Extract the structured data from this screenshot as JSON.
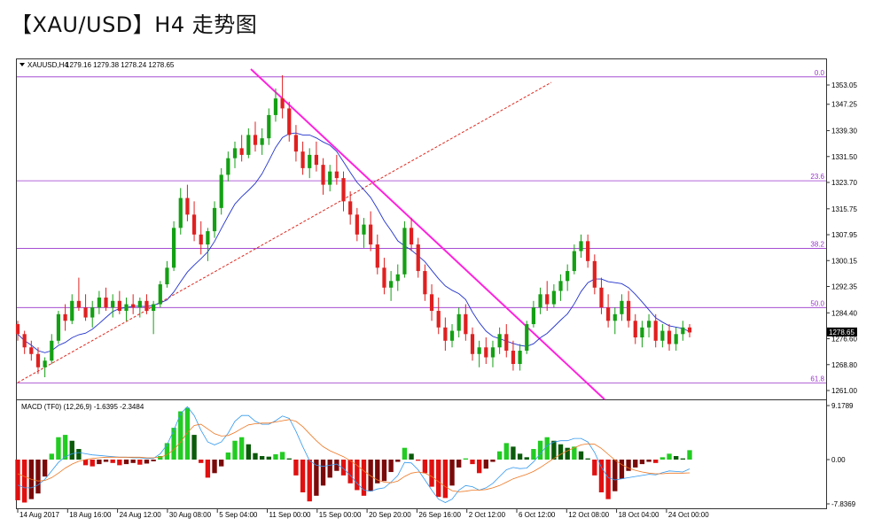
{
  "page": {
    "title": "【XAU/USD】H4 走势图"
  },
  "chart_data": {
    "type": "candlestick",
    "header": {
      "symbol": "XAUUSD,H4",
      "ohlc": "1279.16 1279.38 1278.24 1278.65",
      "current_price": "1278.65"
    },
    "price_axis": {
      "ticks": [
        1353.05,
        1347.25,
        1339.3,
        1331.5,
        1323.7,
        1315.75,
        1307.95,
        1300.15,
        1292.35,
        1284.4,
        1276.6,
        1268.8,
        1261.0
      ],
      "tick_labels": [
        "1353.05",
        "1347.25",
        "1339.30",
        "1331.50",
        "1323.70",
        "1315.75",
        "1307.95",
        "1300.15",
        "1292.35",
        "1284.40",
        "1276.60",
        "1268.80",
        "1261.00"
      ]
    },
    "x_axis": {
      "labels": [
        "14 Aug 2017",
        "18 Aug 16:00",
        "24 Aug 12:00",
        "30 Aug 08:00",
        "5 Sep 04:00",
        "11 Sep 00:00",
        "15 Sep 00:00",
        "20 Sep 20:00",
        "26 Sep 16:00",
        "2 Oct 12:00",
        "6 Oct 12:00",
        "12 Oct 08:00",
        "18 Oct 04:00",
        "24 Oct 00:00"
      ]
    },
    "fibonacci": [
      {
        "level": "0.0",
        "price": 1355.5
      },
      {
        "level": "23.6",
        "price": 1324.2
      },
      {
        "level": "38.2",
        "price": 1303.8
      },
      {
        "level": "50.0",
        "price": 1286.0
      },
      {
        "level": "61.8",
        "price": 1263.3
      }
    ],
    "candles": [
      [
        1281.0,
        1282.0,
        1276.0,
        1278.0
      ],
      [
        1278.0,
        1279.0,
        1272.0,
        1274.0
      ],
      [
        1274.0,
        1276.0,
        1270.0,
        1272.0
      ],
      [
        1272.0,
        1274.0,
        1266.0,
        1268.0
      ],
      [
        1268.0,
        1271.0,
        1265.0,
        1270.0
      ],
      [
        1270.0,
        1278.0,
        1269.0,
        1276.0
      ],
      [
        1276.0,
        1285.0,
        1275.0,
        1284.0
      ],
      [
        1284.0,
        1287.0,
        1279.0,
        1282.0
      ],
      [
        1282.0,
        1290.0,
        1281.0,
        1288.0
      ],
      [
        1288.0,
        1295.0,
        1285.0,
        1286.0
      ],
      [
        1286.0,
        1290.0,
        1282.0,
        1283.0
      ],
      [
        1283.0,
        1288.0,
        1280.0,
        1286.0
      ],
      [
        1286.0,
        1291.0,
        1284.0,
        1289.0
      ],
      [
        1289.0,
        1292.0,
        1285.0,
        1286.0
      ],
      [
        1286.0,
        1290.0,
        1283.0,
        1288.0
      ],
      [
        1288.0,
        1291.0,
        1284.0,
        1285.0
      ],
      [
        1285.0,
        1289.0,
        1282.0,
        1287.0
      ],
      [
        1287.0,
        1290.0,
        1284.0,
        1286.0
      ],
      [
        1286.0,
        1289.0,
        1283.0,
        1288.0
      ],
      [
        1288.0,
        1290.0,
        1284.0,
        1285.0
      ],
      [
        1285.0,
        1288.0,
        1278.0,
        1287.0
      ],
      [
        1287.0,
        1294.0,
        1286.0,
        1293.0
      ],
      [
        1293.0,
        1300.0,
        1292.0,
        1298.0
      ],
      [
        1298.0,
        1312.0,
        1297.0,
        1310.0
      ],
      [
        1310.0,
        1322.0,
        1308.0,
        1319.0
      ],
      [
        1319.0,
        1323.0,
        1312.0,
        1314.0
      ],
      [
        1314.0,
        1318.0,
        1306.0,
        1308.0
      ],
      [
        1308.0,
        1312.0,
        1302.0,
        1305.0
      ],
      [
        1305.0,
        1310.0,
        1300.0,
        1309.0
      ],
      [
        1309.0,
        1318.0,
        1307.0,
        1316.0
      ],
      [
        1316.0,
        1328.0,
        1314.0,
        1326.0
      ],
      [
        1326.0,
        1333.0,
        1324.0,
        1331.0
      ],
      [
        1331.0,
        1336.0,
        1328.0,
        1334.0
      ],
      [
        1334.0,
        1338.0,
        1330.0,
        1332.0
      ],
      [
        1332.0,
        1340.0,
        1331.0,
        1338.0
      ],
      [
        1338.0,
        1342.0,
        1333.0,
        1335.0
      ],
      [
        1335.0,
        1340.0,
        1332.0,
        1337.0
      ],
      [
        1337.0,
        1346.0,
        1335.0,
        1344.0
      ],
      [
        1344.0,
        1352.0,
        1342.0,
        1349.0
      ],
      [
        1349.0,
        1356.0,
        1343.0,
        1346.0
      ],
      [
        1346.0,
        1348.0,
        1336.0,
        1338.0
      ],
      [
        1338.0,
        1341.0,
        1330.0,
        1333.0
      ],
      [
        1333.0,
        1336.0,
        1326.0,
        1328.0
      ],
      [
        1328.0,
        1334.0,
        1325.0,
        1332.0
      ],
      [
        1332.0,
        1336.0,
        1327.0,
        1329.0
      ],
      [
        1329.0,
        1331.0,
        1320.0,
        1323.0
      ],
      [
        1323.0,
        1329.0,
        1321.0,
        1327.0
      ],
      [
        1327.0,
        1332.0,
        1323.0,
        1325.0
      ],
      [
        1325.0,
        1327.0,
        1315.0,
        1318.0
      ],
      [
        1318.0,
        1321.0,
        1311.0,
        1314.0
      ],
      [
        1314.0,
        1316.0,
        1306.0,
        1308.0
      ],
      [
        1308.0,
        1313.0,
        1304.0,
        1311.0
      ],
      [
        1311.0,
        1315.0,
        1303.0,
        1305.0
      ],
      [
        1305.0,
        1308.0,
        1296.0,
        1298.0
      ],
      [
        1298.0,
        1301.0,
        1290.0,
        1292.0
      ],
      [
        1292.0,
        1297.0,
        1288.0,
        1294.0
      ],
      [
        1294.0,
        1299.0,
        1291.0,
        1296.0
      ],
      [
        1296.0,
        1312.0,
        1295.0,
        1310.0
      ],
      [
        1310.0,
        1313.0,
        1303.0,
        1305.0
      ],
      [
        1305.0,
        1307.0,
        1295.0,
        1297.0
      ],
      [
        1297.0,
        1299.0,
        1288.0,
        1290.0
      ],
      [
        1290.0,
        1293.0,
        1282.0,
        1285.0
      ],
      [
        1285.0,
        1289.0,
        1278.0,
        1280.0
      ],
      [
        1280.0,
        1283.0,
        1273.0,
        1276.0
      ],
      [
        1276.0,
        1281.0,
        1274.0,
        1279.0
      ],
      [
        1279.0,
        1286.0,
        1277.0,
        1284.0
      ],
      [
        1284.0,
        1287.0,
        1276.0,
        1278.0
      ],
      [
        1278.0,
        1280.0,
        1270.0,
        1272.0
      ],
      [
        1272.0,
        1276.0,
        1268.0,
        1274.0
      ],
      [
        1274.0,
        1277.0,
        1269.0,
        1271.0
      ],
      [
        1271.0,
        1276.0,
        1268.0,
        1274.0
      ],
      [
        1274.0,
        1280.0,
        1272.0,
        1278.0
      ],
      [
        1278.0,
        1281.0,
        1271.0,
        1273.0
      ],
      [
        1273.0,
        1276.0,
        1267.0,
        1269.0
      ],
      [
        1269.0,
        1275.0,
        1267.0,
        1273.0
      ],
      [
        1273.0,
        1282.0,
        1272.0,
        1281.0
      ],
      [
        1281.0,
        1288.0,
        1280.0,
        1286.0
      ],
      [
        1286.0,
        1292.0,
        1284.0,
        1290.0
      ],
      [
        1290.0,
        1294.0,
        1285.0,
        1287.0
      ],
      [
        1287.0,
        1293.0,
        1286.0,
        1291.0
      ],
      [
        1291.0,
        1296.0,
        1288.0,
        1294.0
      ],
      [
        1294.0,
        1299.0,
        1291.0,
        1297.0
      ],
      [
        1297.0,
        1305.0,
        1296.0,
        1303.0
      ],
      [
        1303.0,
        1308.0,
        1301.0,
        1306.0
      ],
      [
        1306.0,
        1308.0,
        1298.0,
        1300.0
      ],
      [
        1300.0,
        1302.0,
        1290.0,
        1292.0
      ],
      [
        1292.0,
        1295.0,
        1284.0,
        1286.0
      ],
      [
        1286.0,
        1290.0,
        1280.0,
        1282.0
      ],
      [
        1282.0,
        1286.0,
        1278.0,
        1284.0
      ],
      [
        1284.0,
        1290.0,
        1282.0,
        1288.0
      ],
      [
        1288.0,
        1291.0,
        1280.0,
        1282.0
      ],
      [
        1282.0,
        1284.0,
        1275.0,
        1277.0
      ],
      [
        1277.0,
        1282.0,
        1274.0,
        1280.0
      ],
      [
        1280.0,
        1284.0,
        1277.0,
        1282.0
      ],
      [
        1282.0,
        1284.0,
        1274.0,
        1276.0
      ],
      [
        1276.0,
        1281.0,
        1274.0,
        1279.0
      ],
      [
        1279.0,
        1281.0,
        1273.0,
        1275.0
      ],
      [
        1275.0,
        1280.0,
        1273.0,
        1278.0
      ],
      [
        1278.0,
        1282.0,
        1276.0,
        1280.0
      ],
      [
        1280.0,
        1281.0,
        1277.0,
        1278.5
      ]
    ],
    "macd": {
      "label": "MACD (TF0) (12,26,9) -1.6395 -2.3484",
      "scale_ticks": [
        "9.1789",
        "0.00",
        "-7.8369"
      ],
      "histogram": [
        -7.2,
        -7.6,
        -7.0,
        -6.0,
        -3.0,
        1.0,
        3.8,
        4.2,
        3.2,
        1.8,
        -1.0,
        -1.2,
        -0.8,
        -0.4,
        -0.6,
        -1.0,
        -0.8,
        -0.6,
        -0.9,
        -0.7,
        -0.3,
        0.6,
        2.8,
        5.4,
        8.2,
        8.8,
        4.2,
        -0.6,
        -3.2,
        -2.4,
        -1.2,
        1.2,
        3.2,
        3.8,
        2.6,
        1.1,
        0.6,
        0.5,
        0.9,
        1.3,
        0.2,
        -2.8,
        -5.8,
        -7.4,
        -6.4,
        -4.6,
        -3.2,
        -2.0,
        -2.8,
        -4.2,
        -5.4,
        -6.4,
        -5.6,
        -4.2,
        -3.8,
        -2.2,
        -0.4,
        2.0,
        1.0,
        -0.2,
        -2.4,
        -4.8,
        -6.6,
        -6.8,
        -4.6,
        -1.4,
        0.2,
        -0.8,
        -2.4,
        -1.6,
        -0.4,
        1.4,
        2.8,
        2.2,
        1.0,
        0.4,
        1.8,
        3.2,
        3.8,
        3.2,
        2.6,
        2.0,
        2.2,
        1.4,
        0.2,
        -2.8,
        -5.8,
        -7.0,
        -5.6,
        -3.4,
        -2.0,
        -1.4,
        -0.8,
        -0.4,
        -0.6,
        0.4,
        1.0,
        0.6,
        0.2,
        1.6
      ],
      "macd_line": [
        -4.5,
        -5.0,
        -5.0,
        -4.5,
        -3.5,
        -2.0,
        -0.5,
        0.5,
        1.0,
        1.2,
        1.0,
        0.8,
        0.7,
        0.6,
        0.5,
        0.4,
        0.4,
        0.3,
        0.3,
        0.2,
        0.2,
        1.0,
        2.5,
        5.0,
        7.8,
        9.0,
        7.5,
        5.0,
        3.0,
        2.5,
        3.0,
        4.5,
        6.5,
        7.5,
        7.5,
        6.5,
        6.0,
        6.0,
        6.6,
        7.4,
        7.0,
        4.8,
        2.2,
        -0.2,
        -1.0,
        -1.2,
        -1.0,
        -0.8,
        -1.6,
        -2.8,
        -4.2,
        -5.4,
        -5.6,
        -5.2,
        -5.0,
        -4.0,
        -2.8,
        -0.5,
        -0.6,
        -1.8,
        -3.6,
        -5.4,
        -7.0,
        -7.6,
        -7.0,
        -5.4,
        -4.6,
        -4.8,
        -5.4,
        -5.0,
        -4.2,
        -3.0,
        -1.8,
        -1.4,
        -1.6,
        -1.5,
        -0.4,
        1.0,
        2.4,
        3.0,
        3.2,
        3.2,
        3.6,
        3.6,
        3.0,
        1.2,
        -1.4,
        -3.2,
        -3.6,
        -3.4,
        -3.2,
        -3.0,
        -2.8,
        -2.6,
        -2.7,
        -2.3,
        -2.0,
        -2.1,
        -2.2,
        -1.64
      ],
      "signal_line": [
        -2.5,
        -3.0,
        -3.5,
        -3.8,
        -3.7,
        -3.2,
        -2.4,
        -1.5,
        -0.8,
        -0.3,
        0.0,
        0.2,
        0.3,
        0.4,
        0.4,
        0.4,
        0.4,
        0.4,
        0.4,
        0.3,
        0.3,
        0.4,
        0.8,
        1.7,
        3.0,
        4.6,
        5.8,
        6.0,
        5.2,
        4.4,
        4.0,
        4.1,
        4.6,
        5.3,
        5.9,
        6.1,
        6.2,
        6.2,
        6.4,
        6.6,
        6.8,
        6.5,
        5.6,
        4.4,
        3.2,
        2.2,
        1.5,
        1.0,
        0.5,
        -0.2,
        -1.0,
        -2.0,
        -2.9,
        -3.6,
        -4.0,
        -4.1,
        -3.8,
        -3.0,
        -2.4,
        -2.2,
        -2.4,
        -3.0,
        -3.9,
        -4.8,
        -5.5,
        -5.7,
        -5.6,
        -5.4,
        -5.4,
        -5.3,
        -5.0,
        -4.6,
        -4.0,
        -3.4,
        -3.0,
        -2.6,
        -2.1,
        -1.4,
        -0.6,
        0.2,
        0.9,
        1.5,
        2.0,
        2.5,
        2.7,
        2.6,
        1.9,
        0.9,
        -0.1,
        -0.9,
        -1.5,
        -1.9,
        -2.2,
        -2.4,
        -2.5,
        -2.5,
        -2.4,
        -2.4,
        -2.4,
        -2.35
      ]
    }
  }
}
